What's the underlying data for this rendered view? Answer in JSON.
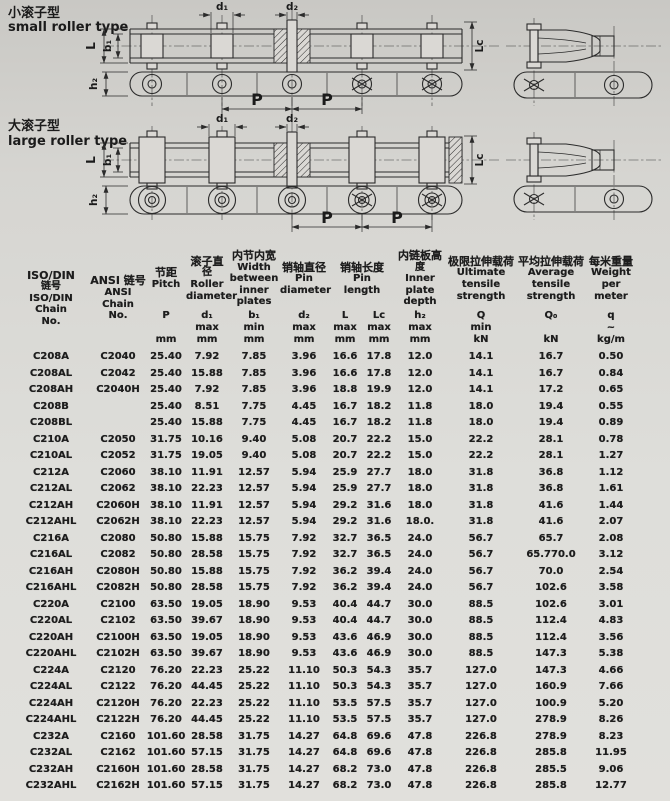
{
  "diagrams": {
    "small": {
      "label_zh": "小滚子型",
      "label_en": "small roller type"
    },
    "large": {
      "label_zh": "大滚子型",
      "label_en": "large roller type"
    },
    "dims": {
      "L": "L",
      "b1": "b₁",
      "h2": "h₂",
      "d1": "d₁",
      "d2": "d₂",
      "P": "P",
      "Lc": "Lc"
    }
  },
  "table": {
    "cols": [
      {
        "name": "ISO/DIN\n链号\nISO/DIN\nChain\nNo."
      },
      {
        "name": "ANSI 链号\nANSI Chain\nNo."
      },
      {
        "name": "节距\nPitch",
        "sym": "P",
        "unit": "mm"
      },
      {
        "name": "滚子直径\nRoller\ndiameter",
        "sym": "d₁\nmax",
        "unit": "mm"
      },
      {
        "name": "内节内宽\nWidth\nbetween\ninner plates",
        "sym": "b₁\nmin",
        "unit": "mm"
      },
      {
        "name": "销轴直径\nPin\ndiameter",
        "sym": "d₂\nmax",
        "unit": "mm"
      },
      {
        "name": "销轴长度\nPin\nlength",
        "sym_l": "L\nmax",
        "sym_lc": "Lc\nmax",
        "unit_l": "mm",
        "unit_lc": "mm"
      },
      {
        "name": "内链板高度\nInner\nplate depth",
        "sym": "h₂\nmax",
        "unit": "mm"
      },
      {
        "name": "极限拉伸载荷\nUltimate\ntensile\nstrength",
        "sym": "Q\nmin",
        "unit": "kN"
      },
      {
        "name": "平均拉伸载荷\nAverage\ntensile\nstrength",
        "sym": "Q₀",
        "unit": "kN"
      },
      {
        "name": "每米重量\nWeight\nper\nmeter",
        "sym": "q\n~",
        "unit": "kg/m"
      }
    ],
    "rows": [
      [
        "C208A",
        "C2040",
        "25.40",
        "7.92",
        "7.85",
        "3.96",
        "16.6",
        "17.8",
        "12.0",
        "14.1",
        "16.7",
        "0.50"
      ],
      [
        "C208AL",
        "C2042",
        "25.40",
        "15.88",
        "7.85",
        "3.96",
        "16.6",
        "17.8",
        "12.0",
        "14.1",
        "16.7",
        "0.84"
      ],
      [
        "C208AH",
        "C2040H",
        "25.40",
        "7.92",
        "7.85",
        "3.96",
        "18.8",
        "19.9",
        "12.0",
        "14.1",
        "17.2",
        "0.65"
      ],
      [
        "C208B",
        "",
        "25.40",
        "8.51",
        "7.75",
        "4.45",
        "16.7",
        "18.2",
        "11.8",
        "18.0",
        "19.4",
        "0.55"
      ],
      [
        "C208BL",
        "",
        "25.40",
        "15.88",
        "7.75",
        "4.45",
        "16.7",
        "18.2",
        "11.8",
        "18.0",
        "19.4",
        "0.89"
      ],
      [
        "C210A",
        "C2050",
        "31.75",
        "10.16",
        "9.40",
        "5.08",
        "20.7",
        "22.2",
        "15.0",
        "22.2",
        "28.1",
        "0.78"
      ],
      [
        "C210AL",
        "C2052",
        "31.75",
        "19.05",
        "9.40",
        "5.08",
        "20.7",
        "22.2",
        "15.0",
        "22.2",
        "28.1",
        "1.27"
      ],
      [
        "C212A",
        "C2060",
        "38.10",
        "11.91",
        "12.57",
        "5.94",
        "25.9",
        "27.7",
        "18.0",
        "31.8",
        "36.8",
        "1.12"
      ],
      [
        "C212AL",
        "C2062",
        "38.10",
        "22.23",
        "12.57",
        "5.94",
        "25.9",
        "27.7",
        "18.0",
        "31.8",
        "36.8",
        "1.61"
      ],
      [
        "C212AH",
        "C2060H",
        "38.10",
        "11.91",
        "12.57",
        "5.94",
        "29.2",
        "31.6",
        "18.0",
        "31.8",
        "41.6",
        "1.44"
      ],
      [
        "C212AHL",
        "C2062H",
        "38.10",
        "22.23",
        "12.57",
        "5.94",
        "29.2",
        "31.6",
        "18.0.",
        "31.8",
        "41.6",
        "2.07"
      ],
      [
        "C216A",
        "C2080",
        "50.80",
        "15.88",
        "15.75",
        "7.92",
        "32.7",
        "36.5",
        "24.0",
        "56.7",
        "65.7",
        "2.08"
      ],
      [
        "C216AL",
        "C2082",
        "50.80",
        "28.58",
        "15.75",
        "7.92",
        "32.7",
        "36.5",
        "24.0",
        "56.7",
        "65.770.0",
        "3.12"
      ],
      [
        "C216AH",
        "C2080H",
        "50.80",
        "15.88",
        "15.75",
        "7.92",
        "36.2",
        "39.4",
        "24.0",
        "56.7",
        "70.0",
        "2.54"
      ],
      [
        "C216AHL",
        "C2082H",
        "50.80",
        "28.58",
        "15.75",
        "7.92",
        "36.2",
        "39.4",
        "24.0",
        "56.7",
        "102.6",
        "3.58"
      ],
      [
        "C220A",
        "C2100",
        "63.50",
        "19.05",
        "18.90",
        "9.53",
        "40.4",
        "44.7",
        "30.0",
        "88.5",
        "102.6",
        "3.01"
      ],
      [
        "C220AL",
        "C2102",
        "63.50",
        "39.67",
        "18.90",
        "9.53",
        "40.4",
        "44.7",
        "30.0",
        "88.5",
        "112.4",
        "4.83"
      ],
      [
        "C220AH",
        "C2100H",
        "63.50",
        "19.05",
        "18.90",
        "9.53",
        "43.6",
        "46.9",
        "30.0",
        "88.5",
        "112.4",
        "3.56"
      ],
      [
        "C220AHL",
        "C2102H",
        "63.50",
        "39.67",
        "18.90",
        "9.53",
        "43.6",
        "46.9",
        "30.0",
        "88.5",
        "147.3",
        "5.38"
      ],
      [
        "C224A",
        "C2120",
        "76.20",
        "22.23",
        "25.22",
        "11.10",
        "50.3",
        "54.3",
        "35.7",
        "127.0",
        "147.3",
        "4.66"
      ],
      [
        "C224AL",
        "C2122",
        "76.20",
        "44.45",
        "25.22",
        "11.10",
        "50.3",
        "54.3",
        "35.7",
        "127.0",
        "160.9",
        "7.66"
      ],
      [
        "C224AH",
        "C2120H",
        "76.20",
        "22.23",
        "25.22",
        "11.10",
        "53.5",
        "57.5",
        "35.7",
        "127.0",
        "100.9",
        "5.20"
      ],
      [
        "C224AHL",
        "C2122H",
        "76.20",
        "44.45",
        "25.22",
        "11.10",
        "53.5",
        "57.5",
        "35.7",
        "127.0",
        "278.9",
        "8.26"
      ],
      [
        "C232A",
        "C2160",
        "101.60",
        "28.58",
        "31.75",
        "14.27",
        "64.8",
        "69.6",
        "47.8",
        "226.8",
        "278.9",
        "8.23"
      ],
      [
        "C232AL",
        "C2162",
        "101.60",
        "57.15",
        "31.75",
        "14.27",
        "64.8",
        "69.6",
        "47.8",
        "226.8",
        "285.8",
        "11.95"
      ],
      [
        "C232AH",
        "C2160H",
        "101.60",
        "28.58",
        "31.75",
        "14.27",
        "68.2",
        "73.0",
        "47.8",
        "226.8",
        "285.5",
        "9.06"
      ],
      [
        "C232AHL",
        "C2162H",
        "101.60",
        "57.15",
        "31.75",
        "14.27",
        "68.2",
        "73.0",
        "47.8",
        "226.8",
        "285.8",
        "12.77"
      ]
    ]
  }
}
